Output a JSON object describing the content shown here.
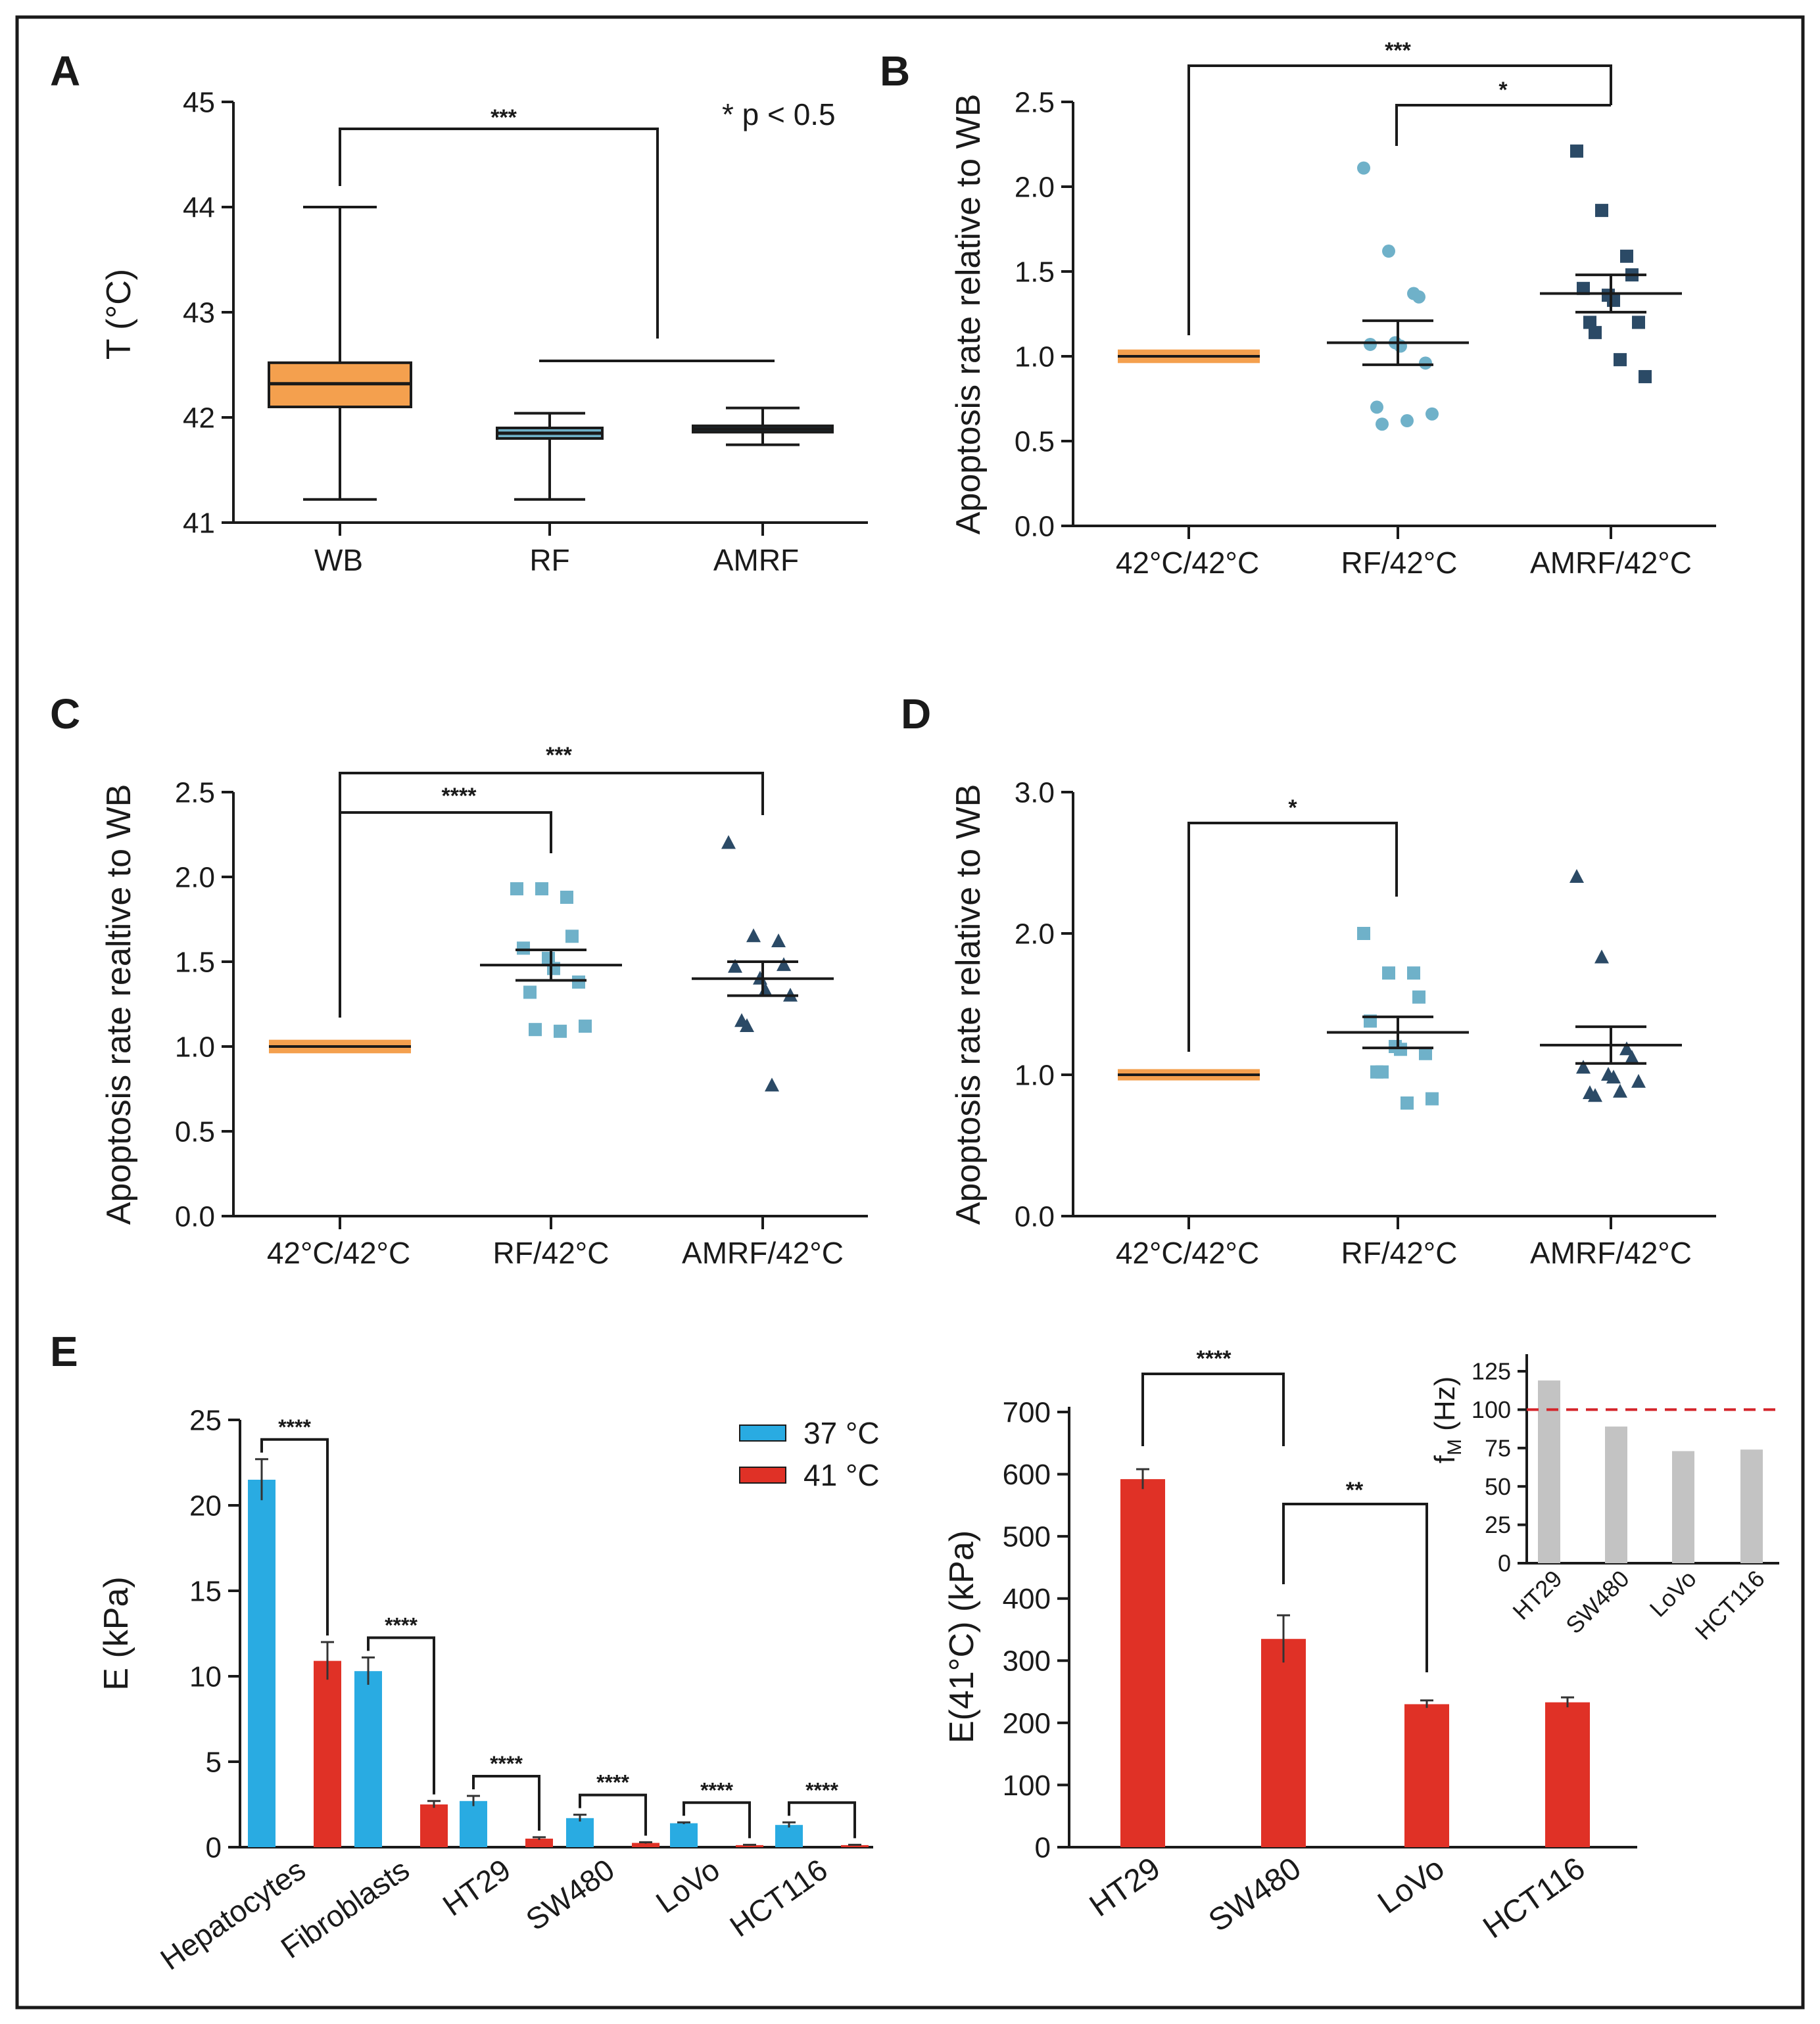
{
  "panel_labels": [
    "A",
    "B",
    "C",
    "D",
    "E"
  ],
  "colors": {
    "orange": "#f4a04e",
    "light_blue": "#6fb1c9",
    "dark_blue": "#2b4a66",
    "bar_blue": "#29abe2",
    "bar_red": "#e03126",
    "inset_grey": "#c3c3c3",
    "ref_line": "#d4242a"
  },
  "chart_data": [
    {
      "id": "A",
      "type": "box",
      "ylabel": "T (°C)",
      "ylim": [
        41,
        45
      ],
      "yticks": [
        "41",
        "42",
        "43",
        "44",
        "45"
      ],
      "annotation": "* p < 0.5",
      "categories": [
        "WB",
        "RF",
        "AMRF"
      ],
      "boxes": [
        {
          "min": 41.22,
          "q1": 42.1,
          "median": 42.32,
          "q3": 42.52,
          "max": 44.0
        },
        {
          "min": 41.22,
          "q1": 41.8,
          "median": 41.85,
          "q3": 41.9,
          "max": 42.04
        },
        {
          "min": 41.74,
          "q1": 41.86,
          "median": 41.89,
          "q3": 41.92,
          "max": 42.09
        }
      ],
      "significance": [
        {
          "label": "***",
          "from": "WB",
          "to": "RF/AMRF"
        }
      ]
    },
    {
      "id": "B",
      "type": "scatter",
      "ylabel": "Apoptosis rate relative to WB",
      "ylim": [
        0,
        2.5
      ],
      "yticks": [
        "0.0",
        "0.5",
        "1.0",
        "1.5",
        "2.0",
        "2.5"
      ],
      "categories": [
        "42°C/42°C",
        "RF/42°C",
        "AMRF/42°C"
      ],
      "series": [
        {
          "name": "42°C/42°C",
          "mean": 1.0,
          "sem": 0.04,
          "points": []
        },
        {
          "name": "RF/42°C",
          "mean": 1.08,
          "sem": 0.13,
          "points": [
            2.11,
            1.62,
            1.37,
            1.35,
            1.07,
            1.08,
            1.06,
            0.96,
            0.7,
            0.6,
            0.62,
            0.66
          ]
        },
        {
          "name": "AMRF/42°C",
          "mean": 1.37,
          "sem": 0.11,
          "points": [
            2.21,
            1.86,
            1.59,
            1.48,
            1.4,
            1.36,
            1.33,
            1.2,
            1.2,
            1.14,
            0.98,
            0.88
          ]
        }
      ],
      "significance": [
        {
          "label": "***",
          "from": "42°C/42°C",
          "to": "AMRF/42°C"
        },
        {
          "label": "*",
          "from": "RF/42°C",
          "to": "AMRF/42°C"
        }
      ]
    },
    {
      "id": "C",
      "type": "scatter",
      "ylabel": "Apoptosis rate realtive to WB",
      "ylim": [
        0,
        2.5
      ],
      "yticks": [
        "0.0",
        "0.5",
        "1.0",
        "1.5",
        "2.0",
        "2.5"
      ],
      "categories": [
        "42°C/42°C",
        "RF/42°C",
        "AMRF/42°C"
      ],
      "series": [
        {
          "name": "42°C/42°C",
          "mean": 1.0,
          "sem": 0.04,
          "points": []
        },
        {
          "name": "RF/42°C",
          "mean": 1.48,
          "sem": 0.09,
          "points": [
            1.93,
            1.93,
            1.88,
            1.65,
            1.58,
            1.52,
            1.46,
            1.38,
            1.32,
            1.1,
            1.09,
            1.12
          ]
        },
        {
          "name": "AMRF/42°C",
          "mean": 1.4,
          "sem": 0.1,
          "points": [
            2.2,
            1.65,
            1.62,
            1.48,
            1.47,
            1.4,
            1.33,
            1.3,
            1.15,
            1.12,
            0.77
          ]
        }
      ],
      "significance": [
        {
          "label": "****",
          "from": "42°C/42°C",
          "to": "RF/42°C"
        },
        {
          "label": "***",
          "from": "42°C/42°C",
          "to": "AMRF/42°C"
        }
      ]
    },
    {
      "id": "D",
      "type": "scatter",
      "ylabel": "Apoptosis rate relative to WB",
      "ylim": [
        0,
        3.0
      ],
      "yticks": [
        "0.0",
        "1.0",
        "2.0",
        "3.0"
      ],
      "categories": [
        "42°C/42°C",
        "RF/42°C",
        "AMRF/42°C"
      ],
      "series": [
        {
          "name": "42°C/42°C",
          "mean": 1.0,
          "sem": 0.04,
          "points": []
        },
        {
          "name": "RF/42°C",
          "mean": 1.3,
          "sem": 0.11,
          "points": [
            2.0,
            1.72,
            1.72,
            1.55,
            1.38,
            1.2,
            1.18,
            1.15,
            1.02,
            1.02,
            0.8,
            0.83
          ]
        },
        {
          "name": "AMRF/42°C",
          "mean": 1.21,
          "sem": 0.13,
          "points": [
            2.4,
            1.83,
            1.18,
            1.12,
            1.05,
            1.0,
            0.98,
            0.95,
            0.87,
            0.85,
            0.88
          ]
        }
      ],
      "significance": [
        {
          "label": "*",
          "from": "42°C/42°C",
          "to": "RF/42°C"
        }
      ]
    },
    {
      "id": "E1",
      "type": "bar",
      "ylabel": "E (kPa)",
      "ylim": [
        0,
        25
      ],
      "yticks": [
        "0",
        "5",
        "10",
        "15",
        "20",
        "25"
      ],
      "categories": [
        "Hepatocytes",
        "Fibroblasts",
        "HT29",
        "SW480",
        "LoVo",
        "HCT116"
      ],
      "series": [
        {
          "name": "37 °C",
          "values": [
            21.5,
            10.3,
            2.7,
            1.7,
            1.4,
            1.3
          ],
          "errors": [
            1.2,
            0.8,
            0.3,
            0.2,
            0.05,
            0.15
          ]
        },
        {
          "name": "41 °C",
          "values": [
            10.9,
            2.5,
            0.5,
            0.25,
            0.12,
            0.12
          ],
          "errors": [
            1.1,
            0.2,
            0.08,
            0.04,
            0.02,
            0.02
          ]
        }
      ],
      "significance": [
        "****",
        "****",
        "****",
        "****",
        "****",
        "****"
      ]
    },
    {
      "id": "E2",
      "type": "bar",
      "ylabel": "E(41°C) (kPa)",
      "ylim": [
        0,
        700
      ],
      "yticks": [
        "0",
        "100",
        "200",
        "300",
        "400",
        "500",
        "600",
        "700"
      ],
      "categories": [
        "HT29",
        "SW480",
        "LoVo",
        "HCT116"
      ],
      "values": [
        592,
        335,
        230,
        233
      ],
      "errors": [
        16,
        38,
        6,
        8
      ],
      "significance": [
        {
          "label": "****",
          "from": "HT29",
          "to": "SW480"
        },
        {
          "label": "**",
          "from": "SW480",
          "to": "LoVo"
        }
      ]
    },
    {
      "id": "E2_inset",
      "type": "bar",
      "ylabel": "fM (Hz)",
      "ylabel_main": "f",
      "ylabel_sub": "M",
      "ylabel_unit": " (Hz)",
      "ylim": [
        0,
        137
      ],
      "yticks": [
        "0",
        "25",
        "50",
        "75",
        "100",
        "125"
      ],
      "categories": [
        "HT29",
        "SW480",
        "LoVo",
        "HCT116"
      ],
      "values": [
        119,
        89,
        73,
        74
      ],
      "reference_line": 100
    }
  ]
}
